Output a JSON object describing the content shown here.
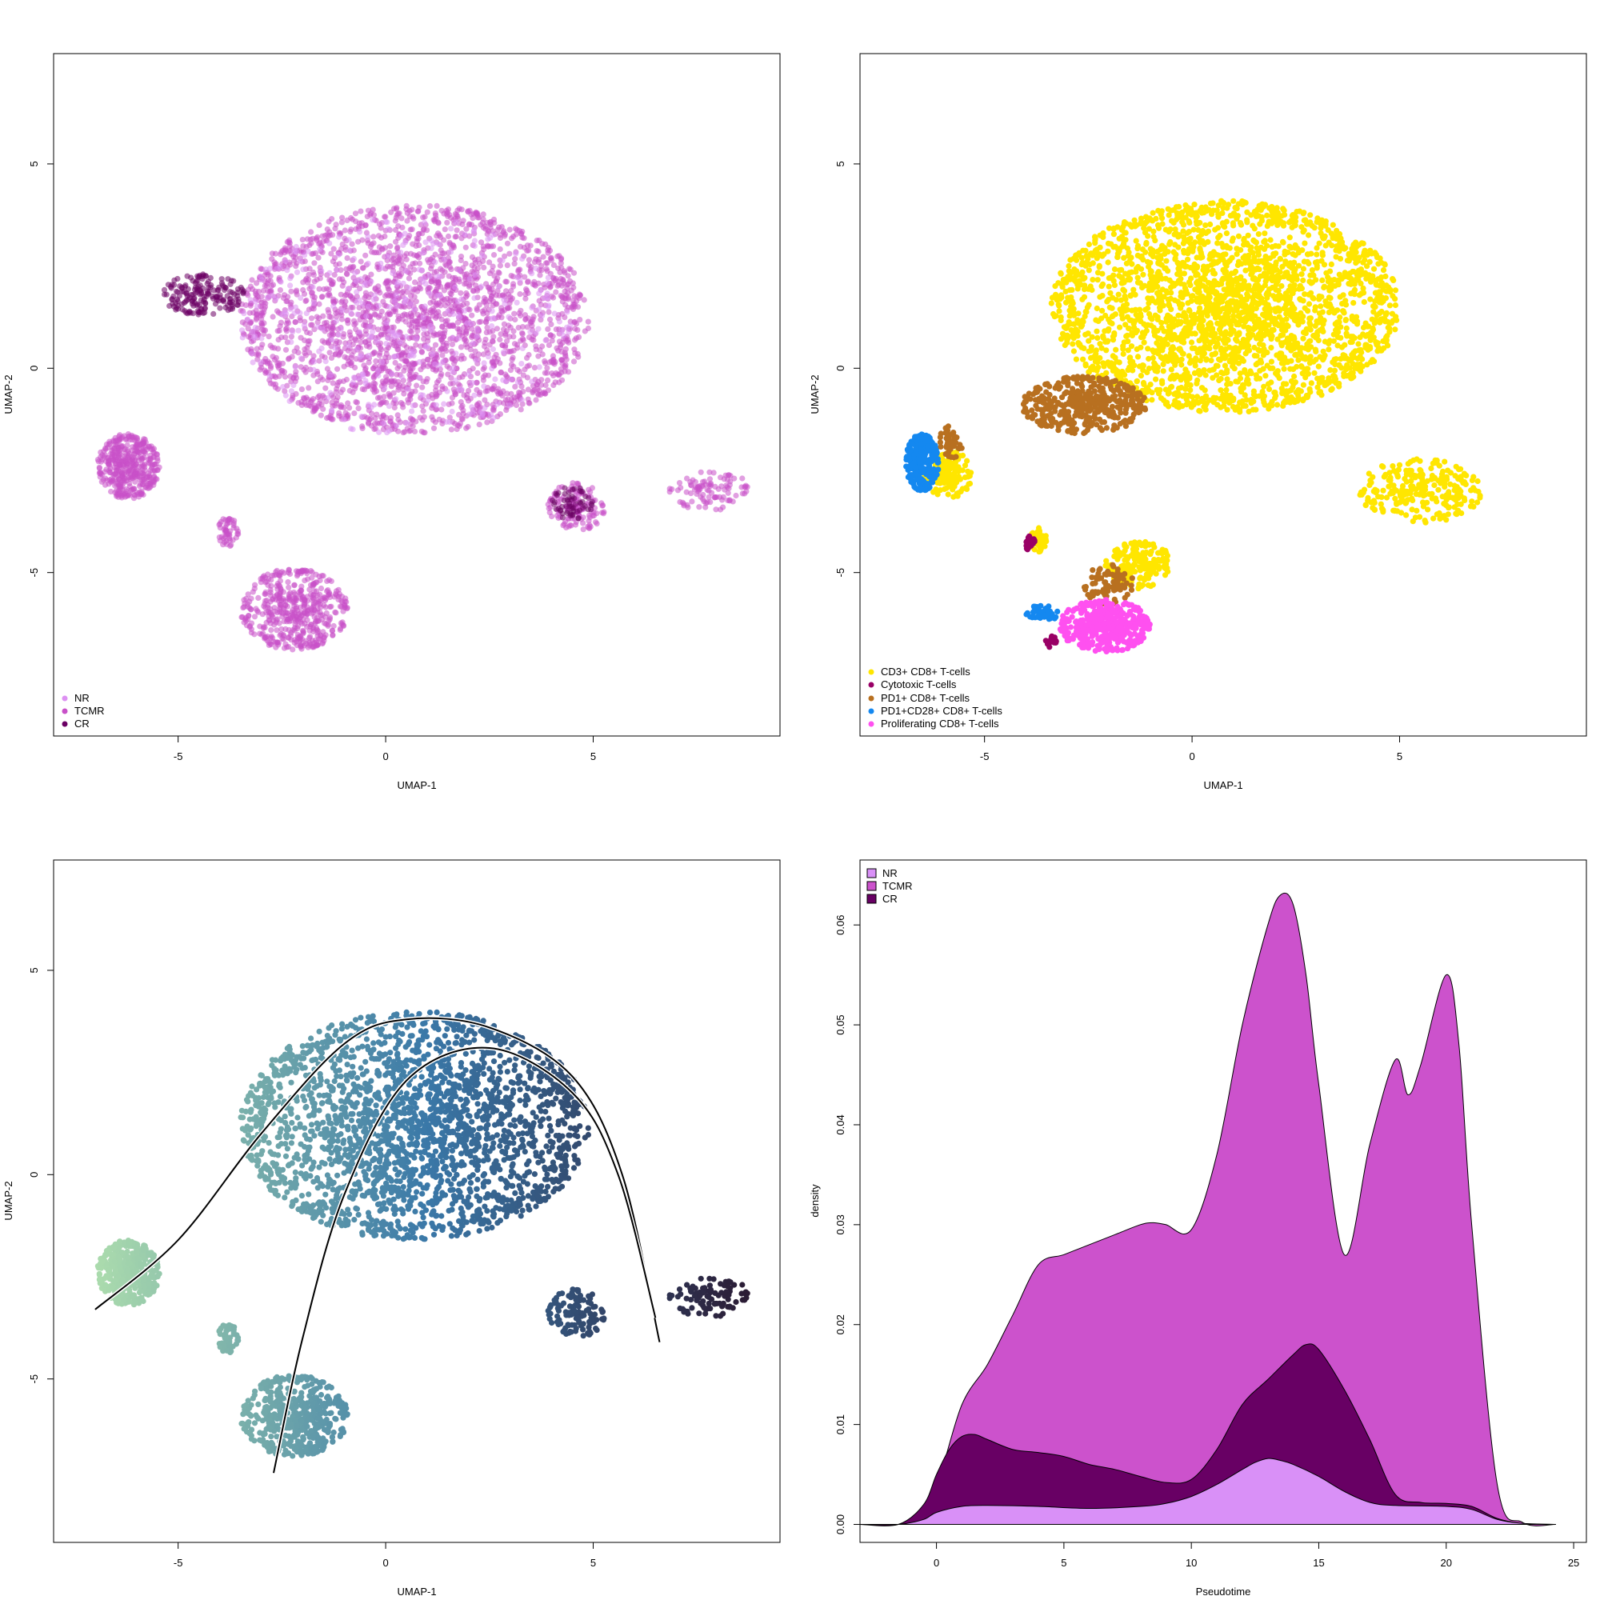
{
  "chart_data": [
    {
      "id": "umap-condition",
      "type": "scatter",
      "title": "",
      "xlabel": "UMAP-1",
      "ylabel": "UMAP-2",
      "xlim": [
        -8.0,
        9.5
      ],
      "ylim": [
        -9.0,
        7.7
      ],
      "xticks": [
        -5,
        0,
        5
      ],
      "yticks": [
        -5,
        0,
        5
      ],
      "legend": {
        "position": "bottom-left",
        "entries": [
          {
            "label": "NR",
            "color": "#dd91f2"
          },
          {
            "label": "TCMR",
            "color": "#c850c8"
          },
          {
            "label": "CR",
            "color": "#6b0064"
          }
        ]
      },
      "clusters": [
        {
          "name": "TCMR",
          "color": "#c850c8",
          "center": [
            0.7,
            1.2
          ],
          "spread": [
            4.2,
            2.8
          ],
          "n": 2400
        },
        {
          "name": "TCMR",
          "color": "#c850c8",
          "center": [
            -6.2,
            -2.4
          ],
          "spread": [
            0.75,
            0.8
          ],
          "n": 420
        },
        {
          "name": "TCMR",
          "color": "#c850c8",
          "center": [
            -2.2,
            -5.9
          ],
          "spread": [
            1.3,
            1.0
          ],
          "n": 500
        },
        {
          "name": "TCMR",
          "color": "#c850c8",
          "center": [
            -3.8,
            -4.0
          ],
          "spread": [
            0.25,
            0.4
          ],
          "n": 50
        },
        {
          "name": "TCMR",
          "color": "#c850c8",
          "center": [
            4.6,
            -3.4
          ],
          "spread": [
            0.7,
            0.6
          ],
          "n": 120
        },
        {
          "name": "TCMR",
          "color": "#c850c8",
          "center": [
            7.8,
            -3.0
          ],
          "spread": [
            1.0,
            0.5
          ],
          "n": 100
        },
        {
          "name": "NR",
          "color": "#dd91f2",
          "center": [
            0.5,
            1.0
          ],
          "spread": [
            4.0,
            2.7
          ],
          "n": 350
        },
        {
          "name": "CR",
          "color": "#6b0064",
          "center": [
            -4.4,
            1.8
          ],
          "spread": [
            1.0,
            0.5
          ],
          "n": 180
        },
        {
          "name": "CR",
          "color": "#6b0064",
          "center": [
            4.5,
            -3.3
          ],
          "spread": [
            0.5,
            0.4
          ],
          "n": 60
        }
      ]
    },
    {
      "id": "umap-celltype",
      "type": "scatter",
      "title": "",
      "xlabel": "UMAP-1",
      "ylabel": "UMAP-2",
      "xlim": [
        -8.0,
        9.5
      ],
      "ylim": [
        -9.0,
        7.7
      ],
      "xticks": [
        -5,
        0,
        5
      ],
      "yticks": [
        -5,
        0,
        5
      ],
      "legend": {
        "position": "bottom-left",
        "entries": [
          {
            "label": "CD3+ CD8+ T-cells",
            "color": "#ffe600"
          },
          {
            "label": "Cytotoxic T-cells",
            "color": "#990066"
          },
          {
            "label": "PD1+ CD8+ T-cells",
            "color": "#b87020"
          },
          {
            "label": "PD1+CD28+ CD8+ T-cells",
            "color": "#1488f0"
          },
          {
            "label": "Proliferating CD8+ T-cells",
            "color": "#ff50f0"
          }
        ]
      },
      "clusters": [
        {
          "name": "CD3+ CD8+ T-cells",
          "color": "#ffe600",
          "center": [
            0.8,
            1.5
          ],
          "spread": [
            4.2,
            2.6
          ],
          "n": 2600
        },
        {
          "name": "CD3+ CD8+ T-cells",
          "color": "#ffe600",
          "center": [
            5.5,
            -3.0
          ],
          "spread": [
            1.5,
            0.8
          ],
          "n": 250
        },
        {
          "name": "PD1+ CD8+ T-cells",
          "color": "#b87020",
          "center": [
            -2.6,
            -0.9
          ],
          "spread": [
            1.5,
            0.7
          ],
          "n": 420
        },
        {
          "name": "CD3+ CD8+ T-cells",
          "color": "#ffe600",
          "center": [
            -5.9,
            -2.6
          ],
          "spread": [
            0.6,
            0.6
          ],
          "n": 140
        },
        {
          "name": "PD1+CD28+ CD8+ T-cells",
          "color": "#1488f0",
          "center": [
            -6.5,
            -2.3
          ],
          "spread": [
            0.4,
            0.7
          ],
          "n": 260
        },
        {
          "name": "PD1+ CD8+ T-cells",
          "color": "#b87020",
          "center": [
            -5.8,
            -1.8
          ],
          "spread": [
            0.3,
            0.4
          ],
          "n": 40
        },
        {
          "name": "CD3+ CD8+ T-cells",
          "color": "#ffe600",
          "center": [
            -1.3,
            -4.8
          ],
          "spread": [
            0.8,
            0.6
          ],
          "n": 180
        },
        {
          "name": "PD1+ CD8+ T-cells",
          "color": "#b87020",
          "center": [
            -2.0,
            -5.3
          ],
          "spread": [
            0.6,
            0.5
          ],
          "n": 90
        },
        {
          "name": "Proliferating CD8+ T-cells",
          "color": "#ff50f0",
          "center": [
            -2.1,
            -6.3
          ],
          "spread": [
            1.1,
            0.65
          ],
          "n": 420
        },
        {
          "name": "PD1+CD28+ CD8+ T-cells",
          "color": "#1488f0",
          "center": [
            -3.6,
            -6.0
          ],
          "spread": [
            0.4,
            0.2
          ],
          "n": 50
        },
        {
          "name": "CD3+ CD8+ T-cells",
          "color": "#ffe600",
          "center": [
            -3.7,
            -4.2
          ],
          "spread": [
            0.2,
            0.3
          ],
          "n": 50
        },
        {
          "name": "Cytotoxic T-cells",
          "color": "#990066",
          "center": [
            -3.9,
            -4.3
          ],
          "spread": [
            0.12,
            0.2
          ],
          "n": 25
        },
        {
          "name": "Cytotoxic T-cells",
          "color": "#990066",
          "center": [
            -3.4,
            -6.7
          ],
          "spread": [
            0.15,
            0.15
          ],
          "n": 15
        }
      ]
    },
    {
      "id": "umap-pseudotime",
      "type": "scatter",
      "title": "",
      "xlabel": "UMAP-1",
      "ylabel": "UMAP-2",
      "xlim": [
        -8.0,
        9.5
      ],
      "ylim": [
        -9.0,
        7.7
      ],
      "xticks": [
        -5,
        0,
        5
      ],
      "yticks": [
        -5,
        0,
        5
      ],
      "color_gradient": {
        "low": "#acdcad",
        "mid": "#3a78a8",
        "high": "#2a1830",
        "x_range": [
          -7.0,
          9.0
        ]
      },
      "clusters": [
        {
          "center": [
            0.7,
            1.2
          ],
          "spread": [
            4.2,
            2.8
          ],
          "n": 2400
        },
        {
          "center": [
            -6.2,
            -2.4
          ],
          "spread": [
            0.75,
            0.8
          ],
          "n": 420
        },
        {
          "center": [
            -2.2,
            -5.9
          ],
          "spread": [
            1.3,
            1.0
          ],
          "n": 500
        },
        {
          "center": [
            -3.8,
            -4.0
          ],
          "spread": [
            0.25,
            0.4
          ],
          "n": 50
        },
        {
          "center": [
            4.6,
            -3.4
          ],
          "spread": [
            0.7,
            0.6
          ],
          "n": 120
        },
        {
          "center": [
            7.8,
            -3.0
          ],
          "spread": [
            1.0,
            0.5
          ],
          "n": 100
        }
      ],
      "curves": [
        {
          "name": "lineage-1",
          "points": [
            [
              -7.0,
              -3.3
            ],
            [
              -5.0,
              -1.6
            ],
            [
              -3.0,
              1.0
            ],
            [
              -1.0,
              3.2
            ],
            [
              0.5,
              3.8
            ],
            [
              2.5,
              3.6
            ],
            [
              4.5,
              2.4
            ],
            [
              5.7,
              0.0
            ],
            [
              6.6,
              -4.1
            ]
          ]
        },
        {
          "name": "lineage-2",
          "points": [
            [
              -2.7,
              -7.3
            ],
            [
              -2.0,
              -4.0
            ],
            [
              -1.0,
              -0.5
            ],
            [
              0.5,
              2.3
            ],
            [
              2.5,
              3.1
            ],
            [
              4.5,
              2.0
            ],
            [
              5.6,
              0.0
            ],
            [
              6.5,
              -3.5
            ]
          ]
        }
      ]
    },
    {
      "id": "density-pseudotime",
      "type": "area",
      "title": "",
      "xlabel": "Pseudotime",
      "ylabel": "density",
      "xlim": [
        -3.0,
        25.5
      ],
      "ylim": [
        -0.0018,
        0.0665
      ],
      "xticks": [
        0,
        5,
        10,
        15,
        20,
        25
      ],
      "yticks": [
        0.0,
        0.01,
        0.02,
        0.03,
        0.04,
        0.05,
        0.06
      ],
      "ytick_labels": [
        "0.00",
        "0.01",
        "0.02",
        "0.03",
        "0.04",
        "0.05",
        "0.06"
      ],
      "legend": {
        "position": "top-left",
        "entries": [
          {
            "label": "NR",
            "color": "#d990f7"
          },
          {
            "label": "TCMR",
            "color": "#cc52cc"
          },
          {
            "label": "CR",
            "color": "#680064"
          }
        ]
      },
      "series": [
        {
          "name": "TCMR",
          "color": "#cc52cc",
          "x": [
            -3.0,
            -1.5,
            -1.0,
            0.0,
            1.0,
            2.0,
            3.0,
            4.0,
            5.0,
            6.0,
            7.0,
            8.0,
            8.5,
            9.0,
            10.0,
            11.0,
            12.0,
            13.0,
            13.5,
            14.0,
            14.5,
            15.0,
            16.0,
            17.0,
            18.0,
            18.5,
            19.0,
            20.0,
            20.5,
            21.0,
            22.0,
            23.0,
            24.3
          ],
          "y": [
            0.0,
            0.0,
            0.0005,
            0.004,
            0.012,
            0.016,
            0.021,
            0.026,
            0.027,
            0.028,
            0.029,
            0.03,
            0.0302,
            0.03,
            0.0295,
            0.037,
            0.05,
            0.06,
            0.063,
            0.062,
            0.055,
            0.044,
            0.027,
            0.038,
            0.0465,
            0.043,
            0.046,
            0.055,
            0.048,
            0.03,
            0.004,
            0.0002,
            0.0
          ]
        },
        {
          "name": "CR",
          "color": "#680064",
          "x": [
            -3.0,
            -1.5,
            -0.5,
            0.0,
            0.5,
            1.0,
            1.5,
            2.0,
            3.0,
            4.0,
            5.0,
            6.0,
            7.0,
            8.0,
            9.0,
            10.0,
            11.0,
            12.0,
            13.0,
            14.0,
            14.5,
            15.0,
            16.0,
            17.0,
            18.0,
            19.0,
            20.0,
            21.0,
            22.0,
            23.0,
            24.3
          ],
          "y": [
            0.0,
            0.0,
            0.002,
            0.005,
            0.0075,
            0.0088,
            0.009,
            0.0085,
            0.0075,
            0.0072,
            0.0068,
            0.006,
            0.0055,
            0.0048,
            0.0042,
            0.0045,
            0.0075,
            0.012,
            0.0145,
            0.017,
            0.018,
            0.0175,
            0.0135,
            0.0085,
            0.003,
            0.0022,
            0.0021,
            0.0018,
            0.0006,
            0.0001,
            0.0
          ]
        },
        {
          "name": "NR",
          "color": "#d990f7",
          "x": [
            -3.0,
            -1.5,
            -0.5,
            0.0,
            1.0,
            2.0,
            4.0,
            6.0,
            8.0,
            9.0,
            10.0,
            11.0,
            12.0,
            12.5,
            13.0,
            13.5,
            14.0,
            15.0,
            16.0,
            17.0,
            18.0,
            20.0,
            21.0,
            22.0,
            23.0,
            24.3
          ],
          "y": [
            0.0,
            0.0,
            0.0005,
            0.0012,
            0.0018,
            0.0019,
            0.0018,
            0.0016,
            0.0018,
            0.0021,
            0.0028,
            0.004,
            0.0055,
            0.0062,
            0.0066,
            0.0064,
            0.006,
            0.0048,
            0.0033,
            0.0022,
            0.0019,
            0.0018,
            0.0015,
            0.0005,
            0.0001,
            0.0
          ]
        }
      ]
    }
  ]
}
